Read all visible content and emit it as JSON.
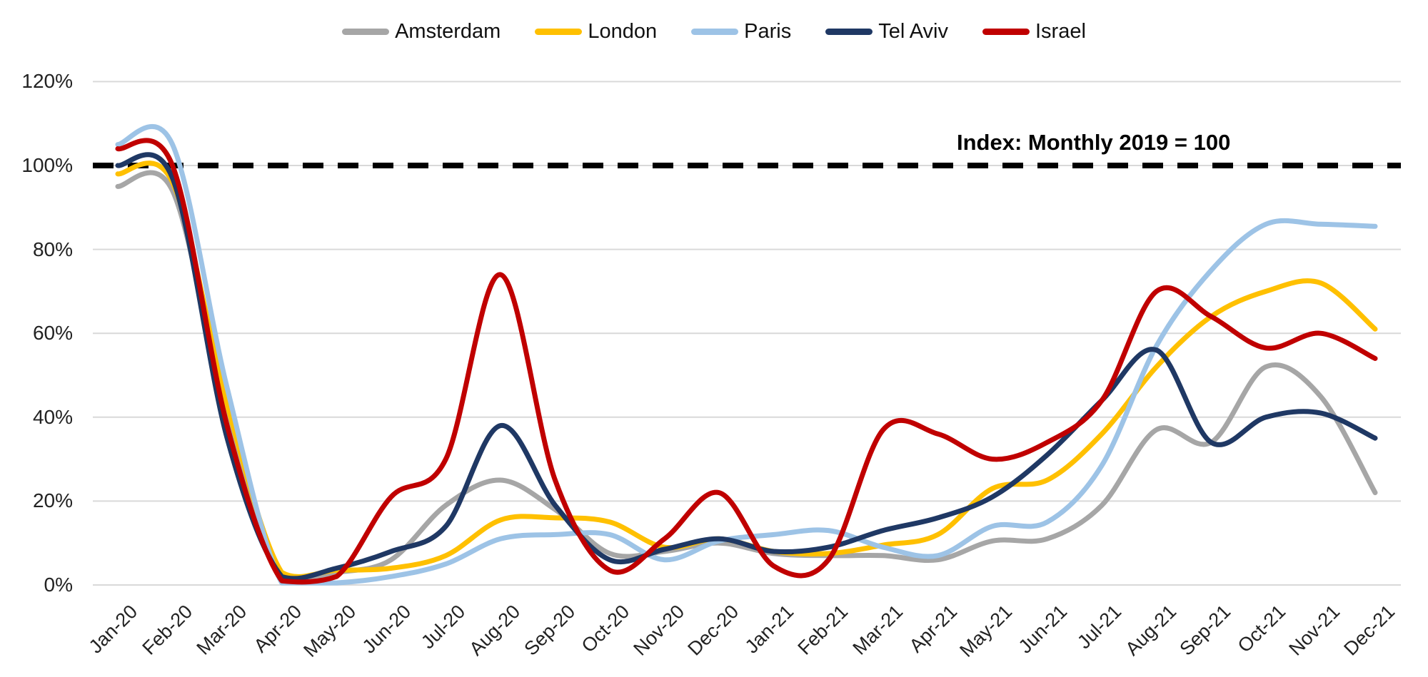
{
  "chart_data": {
    "type": "line",
    "title": "",
    "annotation": "Index: Monthly 2019 = 100",
    "legend_position": "top",
    "grid": true,
    "ylim": [
      0,
      120
    ],
    "y_ticks": [
      {
        "value": 0,
        "label": "0%"
      },
      {
        "value": 20,
        "label": "20%"
      },
      {
        "value": 40,
        "label": "40%"
      },
      {
        "value": 60,
        "label": "60%"
      },
      {
        "value": 80,
        "label": "80%"
      },
      {
        "value": 100,
        "label": "100%"
      },
      {
        "value": 120,
        "label": "120%"
      }
    ],
    "reference_line": {
      "value": 100,
      "style": "dashed",
      "color": "#000000"
    },
    "categories": [
      "Jan-20",
      "Feb-20",
      "Mar-20",
      "Apr-20",
      "May-20",
      "Jun-20",
      "Jul-20",
      "Aug-20",
      "Sep-20",
      "Oct-20",
      "Nov-20",
      "Dec-20",
      "Jan-21",
      "Feb-21",
      "Mar-21",
      "Apr-21",
      "May-21",
      "Jun-21",
      "Jul-21",
      "Aug-21",
      "Sep-21",
      "Oct-21",
      "Nov-21",
      "Dec-21"
    ],
    "series": [
      {
        "name": "Amsterdam",
        "color": "#A6A6A6",
        "values": [
          95,
          94,
          40,
          2,
          3,
          6,
          19,
          25,
          18,
          7.5,
          8,
          10,
          7.5,
          7,
          7,
          6,
          10.5,
          11,
          19,
          37,
          34,
          52,
          45,
          22
        ]
      },
      {
        "name": "London",
        "color": "#FFC000",
        "values": [
          98,
          96,
          43,
          3,
          3.5,
          4,
          7,
          15.5,
          16,
          15,
          9,
          11,
          8,
          7.5,
          9.5,
          12,
          23,
          25,
          36,
          52,
          64,
          70,
          72,
          61
        ]
      },
      {
        "name": "Paris",
        "color": "#9DC3E6",
        "values": [
          105,
          105,
          47,
          0.5,
          0.5,
          2,
          5,
          11,
          12,
          12,
          6,
          10.5,
          12,
          13,
          9,
          7,
          14,
          15,
          28.5,
          57,
          75,
          86,
          86,
          85.5
        ]
      },
      {
        "name": "Tel Aviv",
        "color": "#1F3864",
        "values": [
          100,
          97,
          35,
          2,
          4,
          8,
          14,
          38,
          19,
          6,
          8.5,
          11,
          8,
          9,
          13,
          16,
          21,
          31,
          44,
          56,
          34,
          40,
          41,
          35
        ]
      },
      {
        "name": "Israel",
        "color": "#C00000",
        "values": [
          104,
          100,
          38,
          1,
          2,
          21,
          30,
          74,
          25,
          3.5,
          11,
          22,
          4.5,
          6,
          37,
          36,
          30,
          34,
          44,
          70,
          64,
          56.5,
          60,
          54
        ]
      }
    ],
    "colors": {
      "gridline": "#D9D9D9",
      "axis_text": "#222222",
      "background": "#FFFFFF"
    }
  }
}
